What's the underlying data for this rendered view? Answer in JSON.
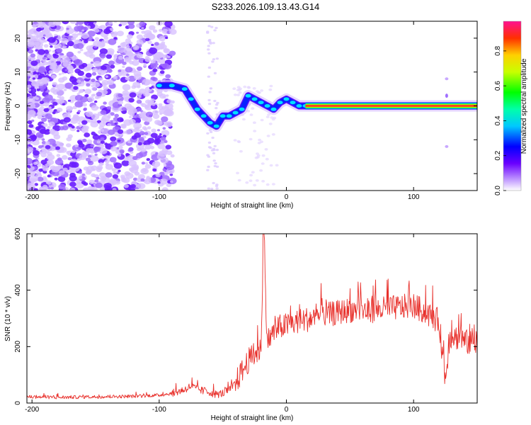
{
  "title": "S233.2026.109.13.43.G14",
  "chart_data": [
    {
      "type": "heatmap",
      "name": "spectrogram",
      "xlabel": "Height of straight line (km)",
      "ylabel": "Frequency (Hz)",
      "xlim": [
        -204,
        150
      ],
      "ylim": [
        -25,
        25
      ],
      "xticks": [
        -200,
        -100,
        0,
        100
      ],
      "xtick_labels": [
        "-200",
        "-100",
        "0",
        "100"
      ],
      "yticks": [
        -20,
        -10,
        0,
        10,
        20
      ],
      "ytick_labels": [
        "-20",
        "-10",
        "0",
        "10",
        "20"
      ],
      "ridge": {
        "description": "dominant frequency track",
        "x": [
          -100,
          -90,
          -80,
          -75,
          -70,
          -65,
          -60,
          -55,
          -50,
          -45,
          -40,
          -35,
          -30,
          -25,
          -20,
          -15,
          -10,
          -5,
          0,
          5,
          10,
          15,
          20,
          40,
          60,
          80,
          100,
          120,
          140,
          150
        ],
        "y": [
          6,
          6,
          5,
          2,
          -1,
          -3,
          -5,
          -6,
          -3,
          -3,
          -2,
          -1,
          3,
          2,
          1,
          0,
          -1,
          1,
          2,
          1,
          0,
          0,
          0,
          0,
          0,
          0,
          0,
          0,
          0,
          0
        ]
      },
      "colorbar": {
        "label": "Normalized spectral amplitude",
        "range": [
          0.0,
          0.97
        ],
        "ticks": [
          0.0,
          0.2,
          0.4,
          0.6,
          0.8
        ],
        "tick_labels": [
          "0.0",
          "0.2",
          "0.4",
          "0.6",
          "0.8"
        ]
      }
    },
    {
      "type": "line",
      "name": "snr",
      "xlabel": "Height of straight line (km)",
      "ylabel": "SNR (10 * v/v)",
      "xlim": [
        -204,
        150
      ],
      "ylim": [
        0,
        600
      ],
      "xticks": [
        -200,
        -100,
        0,
        100
      ],
      "xtick_labels": [
        "-200",
        "-100",
        "0",
        "100"
      ],
      "yticks": [
        0,
        200,
        400,
        600
      ],
      "ytick_labels": [
        "0",
        "200",
        "400",
        "600"
      ],
      "series": [
        {
          "name": "SNR",
          "color": "#e8312c",
          "x": [
            -204,
            -180,
            -150,
            -120,
            -100,
            -90,
            -80,
            -75,
            -70,
            -65,
            -60,
            -55,
            -50,
            -45,
            -40,
            -35,
            -30,
            -25,
            -20,
            -18,
            -15,
            -10,
            -5,
            0,
            10,
            20,
            30,
            40,
            50,
            60,
            70,
            80,
            90,
            100,
            110,
            120,
            125,
            128,
            130,
            135,
            140,
            150
          ],
          "y": [
            22,
            20,
            22,
            24,
            28,
            34,
            48,
            60,
            50,
            42,
            38,
            30,
            35,
            45,
            70,
            110,
            150,
            170,
            190,
            590,
            220,
            250,
            270,
            275,
            290,
            300,
            310,
            320,
            330,
            325,
            330,
            335,
            340,
            345,
            320,
            290,
            80,
            220,
            240,
            230,
            220,
            200
          ]
        }
      ]
    }
  ],
  "colors": {
    "snr_line": "#e8312c",
    "noise_dots": "#8a3dff",
    "ridge_core": "#ff2a20"
  }
}
